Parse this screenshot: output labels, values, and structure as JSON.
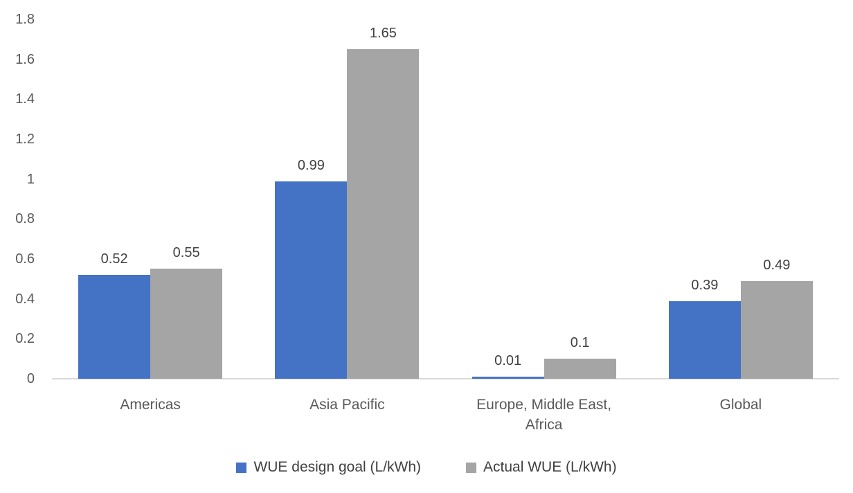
{
  "chart_data": {
    "type": "bar",
    "title": "",
    "xlabel": "",
    "ylabel": "",
    "categories": [
      "Americas",
      "Asia Pacific",
      "Europe, Middle East, Africa",
      "Global"
    ],
    "series": [
      {
        "name": "WUE design goal (L/kWh)",
        "color": "#4472C4",
        "values": [
          0.52,
          0.99,
          0.01,
          0.39
        ],
        "labels": [
          "0.52",
          "0.99",
          "0.01",
          "0.39"
        ]
      },
      {
        "name": "Actual WUE (L/kWh)",
        "color": "#A5A5A5",
        "values": [
          0.55,
          1.65,
          0.1,
          0.49
        ],
        "labels": [
          "0.55",
          "1.65",
          "0.1",
          "0.49"
        ]
      }
    ],
    "ylim": [
      0,
      1.8
    ],
    "yticks": [
      0,
      0.2,
      0.4,
      0.6,
      0.8,
      1,
      1.2,
      1.4,
      1.6,
      1.8
    ],
    "ytick_labels": [
      "0",
      "0.2",
      "0.4",
      "0.6",
      "0.8",
      "1",
      "1.2",
      "1.4",
      "1.6",
      "1.8"
    ],
    "grid": false,
    "legend_position": "bottom",
    "colors": {
      "axis_line": "#D9D9D9",
      "tick_text": "#595959",
      "data_label_text": "#404040",
      "category_text": "#595959",
      "legend_text": "#404040"
    }
  }
}
